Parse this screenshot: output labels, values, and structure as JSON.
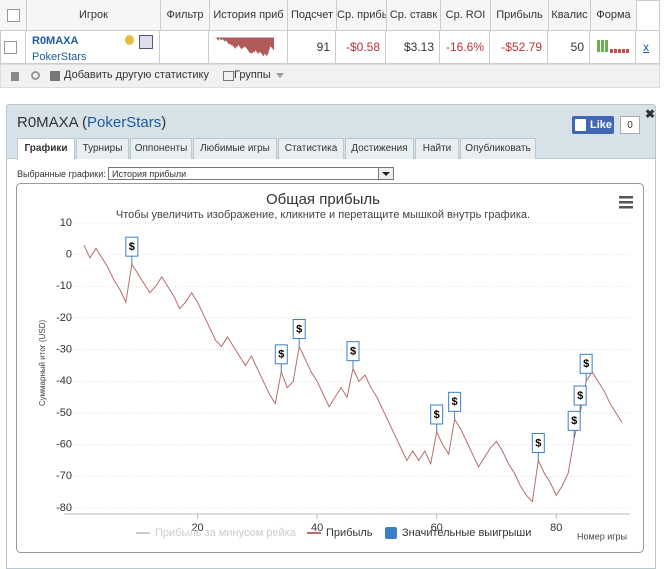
{
  "table": {
    "headers": [
      "Игрок",
      "Фильтр",
      "История приб",
      "Подсчет",
      "Ср. прибы",
      "Ср. ставк",
      "Ср. ROI",
      "Прибыль",
      "Квалис",
      "Форма"
    ],
    "row": {
      "player": "R0MAXA",
      "site": "PokerStars",
      "count": "91",
      "avg_profit": "-$0.58",
      "avg_stake": "$3.13",
      "avg_roi": "-16.6%",
      "profit": "-$52.79",
      "quality": "50",
      "remove": "x"
    }
  },
  "toolbar": {
    "add": "Добавить другую статистику",
    "groups": "Группы"
  },
  "panel": {
    "player": "R0MAXA",
    "open_paren": "(",
    "site": "PokerStars",
    "close_paren": ")",
    "like": "Like",
    "like_count": "0",
    "tabs": [
      "Графики",
      "Турниры",
      "Оппоненты",
      "Любимые игры",
      "Статистика",
      "Достижения",
      "Найти",
      "Опубликовать"
    ],
    "select_label": "Выбранные графики:",
    "select_value": "История прибыли"
  },
  "chart_data": {
    "type": "line",
    "title": "Общая прибыль",
    "subtitle": "Чтобы увеличить изображение, кликните и перетащите мышкой внутрь графика.",
    "y_label": "Суммарный итог (USD)",
    "x_label": "Номер игры",
    "xlim": [
      1,
      91
    ],
    "xticks": [
      20,
      40,
      60,
      80
    ],
    "ylim": [
      -80,
      10
    ],
    "yticks": [
      -80,
      -70,
      -60,
      -50,
      -40,
      -30,
      -20,
      -10,
      0,
      10
    ],
    "grid": true,
    "series": [
      {
        "name": "Прибыль за минусом рейка",
        "color": "#cccccc",
        "visible": false
      },
      {
        "name": "Прибыль",
        "color": "#b86b6b",
        "x": [
          1,
          2,
          3,
          4,
          5,
          6,
          7,
          8,
          9,
          10,
          11,
          12,
          13,
          14,
          15,
          16,
          17,
          18,
          19,
          20,
          21,
          22,
          23,
          24,
          25,
          26,
          27,
          28,
          29,
          30,
          31,
          32,
          33,
          34,
          35,
          36,
          37,
          38,
          39,
          40,
          41,
          42,
          43,
          44,
          45,
          46,
          47,
          48,
          49,
          50,
          51,
          52,
          53,
          54,
          55,
          56,
          57,
          58,
          59,
          60,
          61,
          62,
          63,
          64,
          65,
          66,
          67,
          68,
          69,
          70,
          71,
          72,
          73,
          74,
          75,
          76,
          77,
          78,
          79,
          80,
          81,
          82,
          83,
          84,
          85,
          86,
          87,
          88,
          89,
          90,
          91
        ],
        "values": [
          3,
          -1,
          2,
          -1,
          -4,
          -8,
          -11,
          -15,
          -3,
          -6,
          -9,
          -12,
          -10,
          -7,
          -10,
          -13,
          -17,
          -15,
          -12,
          -15,
          -19,
          -23,
          -27,
          -29,
          -26,
          -29,
          -32,
          -35,
          -32,
          -36,
          -40,
          -44,
          -47,
          -37,
          -42,
          -40,
          -29,
          -33,
          -37,
          -40,
          -44,
          -48,
          -45,
          -42,
          -45,
          -36,
          -40,
          -38,
          -42,
          -45,
          -49,
          -53,
          -57,
          -61,
          -65,
          -62,
          -65,
          -62,
          -66,
          -56,
          -60,
          -63,
          -52,
          -55,
          -59,
          -63,
          -67,
          -64,
          -61,
          -59,
          -62,
          -66,
          -69,
          -73,
          -76,
          -78,
          -65,
          -69,
          -72,
          -76,
          -73,
          -69,
          -58,
          -50,
          -40,
          -37,
          -40,
          -43,
          -47,
          -50,
          -53
        ]
      },
      {
        "name": "Значительные выигрыши",
        "color": "#3d7ec9",
        "flag_label": "$",
        "x": [
          9,
          34,
          37,
          46,
          60,
          63,
          77,
          83,
          84,
          85
        ],
        "values": [
          -3,
          -37,
          -29,
          -36,
          -56,
          -52,
          -65,
          -58,
          -50,
          -40
        ]
      }
    ]
  }
}
